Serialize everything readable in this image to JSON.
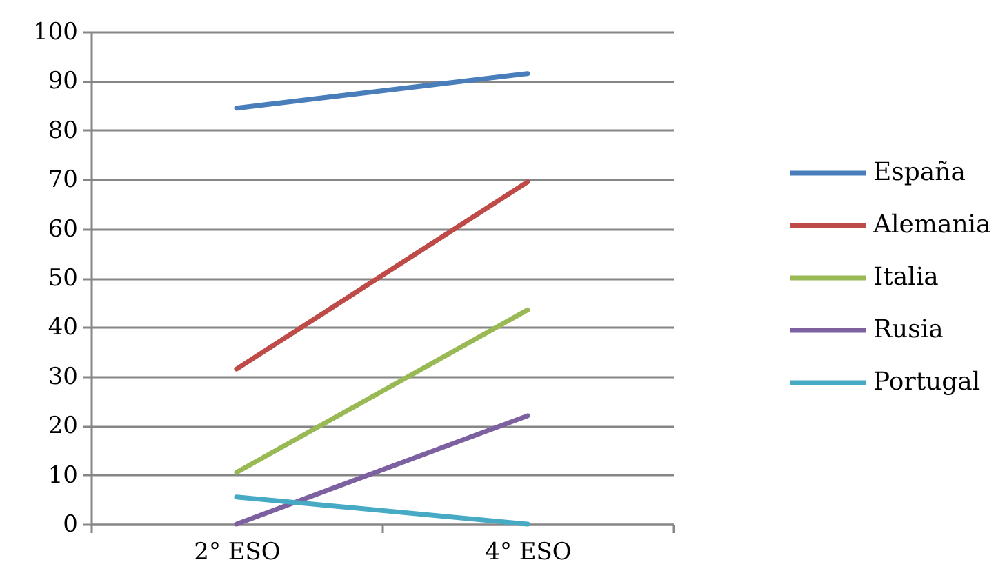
{
  "chart_data": {
    "type": "line",
    "categories": [
      "2° ESO",
      "4° ESO"
    ],
    "series": [
      {
        "name": "España",
        "color": "#4a7ebb",
        "values": [
          84.5,
          91.5
        ]
      },
      {
        "name": "Alemania",
        "color": "#be4b48",
        "values": [
          31.5,
          69.5
        ]
      },
      {
        "name": "Italia",
        "color": "#98b954",
        "values": [
          10.5,
          43.5
        ]
      },
      {
        "name": "Rusia",
        "color": "#7d60a0",
        "values": [
          0,
          22
        ]
      },
      {
        "name": "Portugal",
        "color": "#46aac5",
        "values": [
          5.5,
          0
        ]
      }
    ],
    "ylim": [
      0,
      100
    ],
    "yticks": [
      0,
      10,
      20,
      30,
      40,
      50,
      60,
      70,
      80,
      90,
      100
    ],
    "grid": "y",
    "legend": "right",
    "line_style": "solid"
  }
}
